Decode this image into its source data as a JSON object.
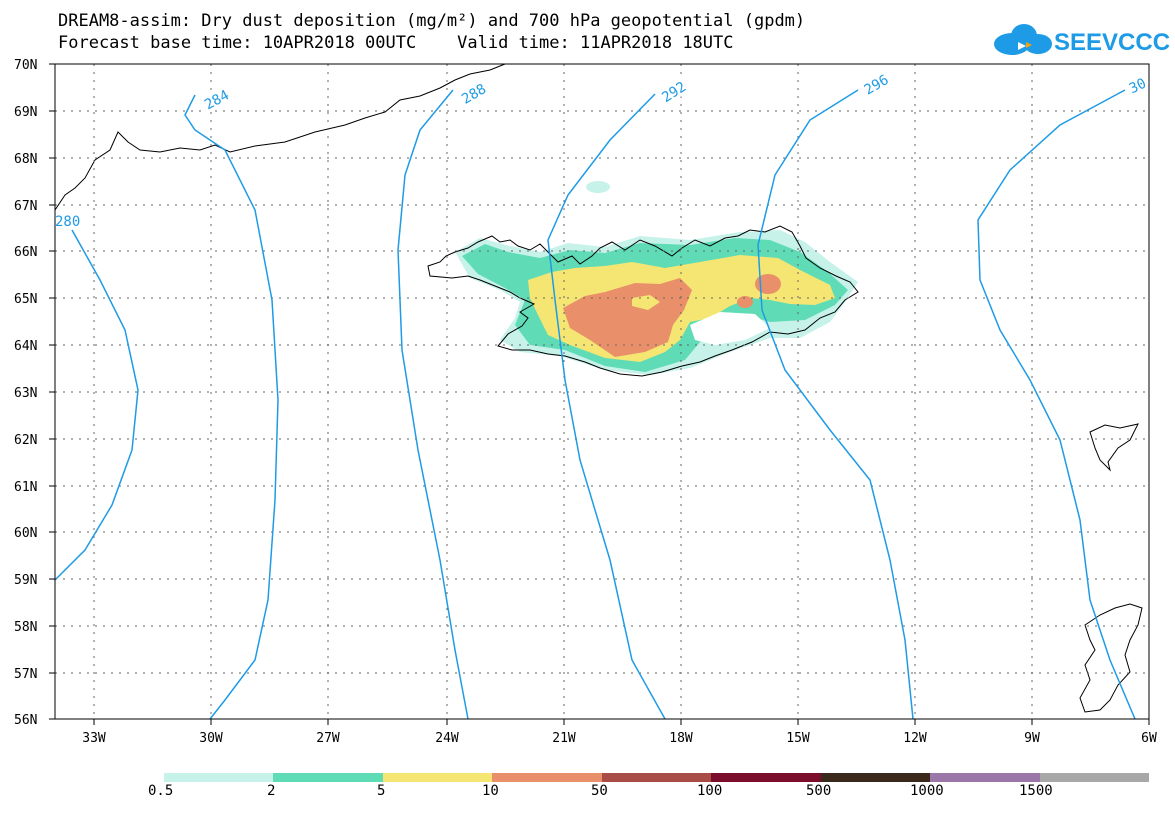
{
  "title_line1": "DREAM8-assim: Dry dust deposition (mg/m²) and 700 hPa geopotential (gpdm)",
  "title_line2": "Forecast base time: 10APR2018 00UTC    Valid time: 11APR2018 18UTC",
  "logo_text": "SEEVCCC",
  "lat_labels": [
    "70N",
    "69N",
    "68N",
    "67N",
    "66N",
    "65N",
    "64N",
    "63N",
    "62N",
    "61N",
    "60N",
    "59N",
    "58N",
    "57N",
    "56N"
  ],
  "lon_labels": [
    "33W",
    "30W",
    "27W",
    "24W",
    "21W",
    "18W",
    "15W",
    "12W",
    "9W",
    "6W"
  ],
  "contour_labels": [
    "280",
    "284",
    "288",
    "292",
    "296",
    "30"
  ],
  "legend": {
    "colors": [
      "#c6f2ea",
      "#5fdcb6",
      "#f5e673",
      "#e9906a",
      "#a84c45",
      "#7d0e2b",
      "#3b2a1c",
      "#9a76a9",
      "#a8a8a8"
    ],
    "labels": [
      "0.5",
      "2",
      "5",
      "10",
      "50",
      "100",
      "500",
      "1000",
      "1500"
    ]
  },
  "colors": {
    "contour": "#1e9be6",
    "coast": "#000000"
  }
}
